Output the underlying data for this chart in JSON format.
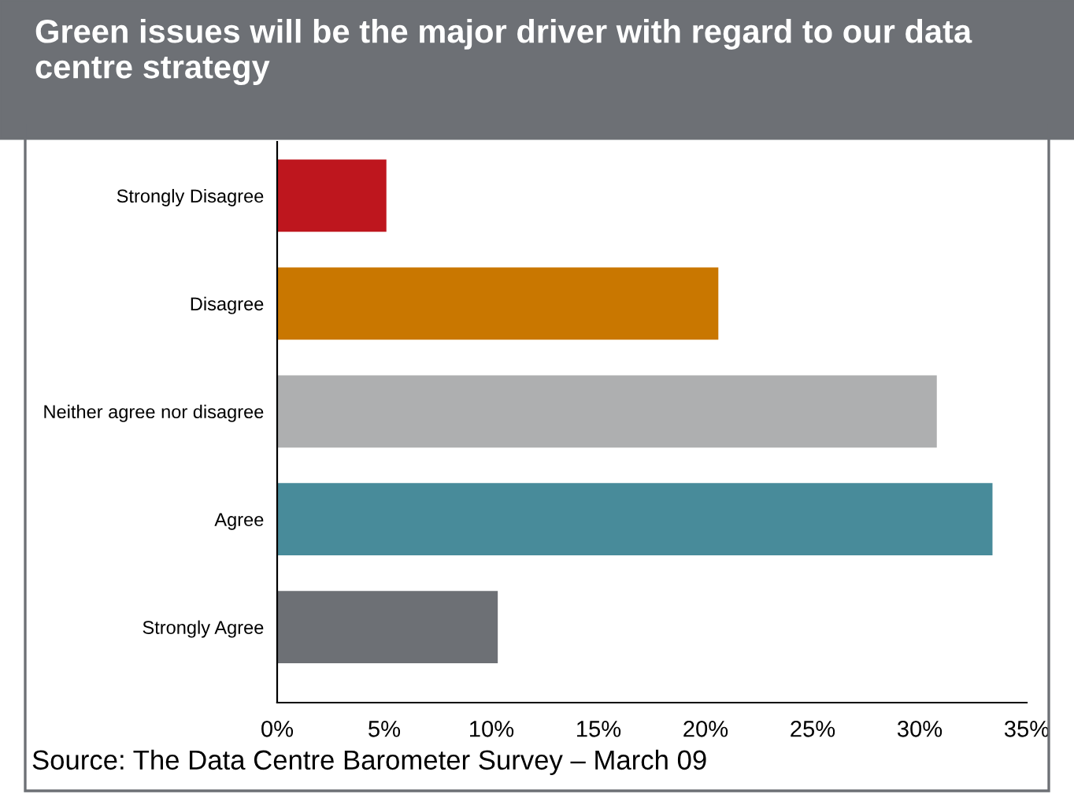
{
  "chart_data": {
    "type": "bar",
    "orientation": "horizontal",
    "title": "Green issues will be the major driver with regard to our data centre strategy",
    "categories": [
      "Strongly Disagree",
      "Disagree",
      "Neither agree nor disagree",
      "Agree",
      "Strongly Agree"
    ],
    "values": [
      5.1,
      20.6,
      30.8,
      33.4,
      10.3
    ],
    "colors": [
      "#be161e",
      "#c97700",
      "#aeafb0",
      "#488b9a",
      "#6d7075"
    ],
    "xlim": [
      0,
      35
    ],
    "xticks": [
      {
        "value": 0,
        "label": "0%"
      },
      {
        "value": 5,
        "label": "5%"
      },
      {
        "value": 10,
        "label": "10%"
      },
      {
        "value": 15,
        "label": "15%"
      },
      {
        "value": 20,
        "label": "20%"
      },
      {
        "value": 25,
        "label": "25%"
      },
      {
        "value": 30,
        "label": "30%"
      },
      {
        "value": 35,
        "label": "35%"
      }
    ],
    "grid": false,
    "legend": false,
    "annotations": [
      "Source: The Data Centre Barometer Survey – March 09"
    ]
  }
}
